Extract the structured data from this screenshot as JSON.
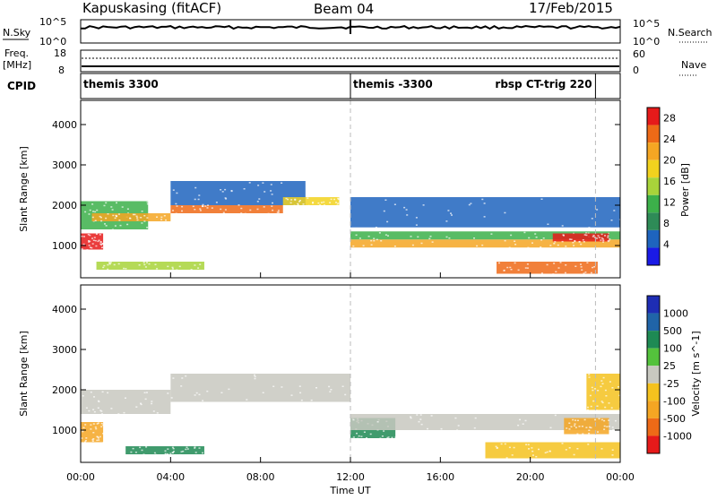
{
  "header": {
    "station": "Kapuskasing (fitACF)",
    "beam": "Beam 04",
    "date": "17/Feb/2015"
  },
  "top_panels": {
    "nsky_label": "N.Sky",
    "nsky_ticks": [
      "10^5",
      "10^0"
    ],
    "nsearch_label": "N.Search",
    "nsearch_ticks": [
      "10^5",
      "10^0"
    ],
    "freq_label_line1": "Freq.",
    "freq_label_line2": "[MHz]",
    "freq_ticks": [
      "18",
      "8"
    ],
    "nave_label": "Nave",
    "nave_ticks": [
      "60",
      "0"
    ],
    "cpid_label": "CPID",
    "cpid_segments": [
      {
        "label": "themis 3300",
        "start_hour": 0.0,
        "end_hour": 12.0
      },
      {
        "label": "themis -3300",
        "start_hour": 12.0,
        "end_hour": 22.9
      },
      {
        "label": "rbsp CT-trig 220",
        "start_hour": 22.9,
        "end_hour": 24.0
      }
    ]
  },
  "colors": {
    "power": [
      "#1a1ae6",
      "#1e64be",
      "#2e8b57",
      "#3cb04a",
      "#a8d43a",
      "#f2d21e",
      "#f5a623",
      "#ee6a17",
      "#e61a1a"
    ],
    "velocity": [
      "#1e2db4",
      "#2064a8",
      "#1e8a54",
      "#54c23c",
      "#c8c8c0",
      "#f5c21e",
      "#f5a623",
      "#ee6a17",
      "#e61a1a"
    ]
  },
  "chart_data": [
    {
      "type": "heatmap",
      "title": "",
      "xlabel": "Time UT",
      "ylabel": "Slant Range [km]",
      "xlim": [
        0,
        24
      ],
      "ylim": [
        200,
        4600
      ],
      "x_ticks": [
        "00:00",
        "04:00",
        "08:00",
        "12:00",
        "16:00",
        "20:00",
        "00:00"
      ],
      "y_ticks": [
        1000,
        2000,
        3000,
        4000
      ],
      "colorbar_label": "Power [dB]",
      "colorbar_ticks": [
        "4",
        "8",
        "12",
        "16",
        "20",
        "24",
        "28"
      ],
      "colorbar_range": [
        0,
        30
      ],
      "echo_bands": [
        {
          "start_hour": 0.0,
          "end_hour": 1.0,
          "range_low": 900,
          "range_high": 1300,
          "value": 28
        },
        {
          "start_hour": 0.0,
          "end_hour": 3.0,
          "range_low": 1400,
          "range_high": 2100,
          "value": 10
        },
        {
          "start_hour": 0.5,
          "end_hour": 4.0,
          "range_low": 1600,
          "range_high": 1800,
          "value": 22
        },
        {
          "start_hour": 4.0,
          "end_hour": 9.0,
          "range_low": 1800,
          "range_high": 2000,
          "value": 24
        },
        {
          "start_hour": 4.0,
          "end_hour": 10.0,
          "range_low": 2000,
          "range_high": 2600,
          "value": 6
        },
        {
          "start_hour": 9.0,
          "end_hour": 11.5,
          "range_low": 2000,
          "range_high": 2200,
          "value": 18
        },
        {
          "start_hour": 0.7,
          "end_hour": 5.5,
          "range_low": 400,
          "range_high": 600,
          "value": 14
        },
        {
          "start_hour": 12.0,
          "end_hour": 24.0,
          "range_low": 950,
          "range_high": 1150,
          "value": 22
        },
        {
          "start_hour": 12.0,
          "end_hour": 24.0,
          "range_low": 1150,
          "range_high": 1350,
          "value": 10
        },
        {
          "start_hour": 12.0,
          "end_hour": 24.0,
          "range_low": 1450,
          "range_high": 2200,
          "value": 6
        },
        {
          "start_hour": 18.5,
          "end_hour": 23.0,
          "range_low": 300,
          "range_high": 600,
          "value": 26
        },
        {
          "start_hour": 21.0,
          "end_hour": 23.5,
          "range_low": 1100,
          "range_high": 1300,
          "value": 28
        }
      ]
    },
    {
      "type": "heatmap",
      "title": "",
      "xlabel": "Time UT",
      "ylabel": "Slant Range [km]",
      "xlim": [
        0,
        24
      ],
      "ylim": [
        200,
        4600
      ],
      "x_ticks": [
        "00:00",
        "04:00",
        "08:00",
        "12:00",
        "16:00",
        "20:00",
        "00:00"
      ],
      "y_ticks": [
        1000,
        2000,
        3000,
        4000
      ],
      "colorbar_label": "Velocity [m s^-1]",
      "colorbar_ticks": [
        "1000",
        "500",
        "100",
        "25",
        "-25",
        "-100",
        "-500",
        "-1000"
      ],
      "echo_bands": [
        {
          "start_hour": 0.0,
          "end_hour": 1.0,
          "range_low": 700,
          "range_high": 1200,
          "value": -500
        },
        {
          "start_hour": 0.0,
          "end_hour": 4.0,
          "range_low": 1400,
          "range_high": 2000,
          "value": 0
        },
        {
          "start_hour": 4.0,
          "end_hour": 12.0,
          "range_low": 1700,
          "range_high": 2400,
          "value": 0
        },
        {
          "start_hour": 2.0,
          "end_hour": 5.5,
          "range_low": 400,
          "range_high": 600,
          "value": 150
        },
        {
          "start_hour": 12.0,
          "end_hour": 14.0,
          "range_low": 800,
          "range_high": 1300,
          "value": 150
        },
        {
          "start_hour": 12.0,
          "end_hour": 24.0,
          "range_low": 1000,
          "range_high": 1400,
          "value": 0
        },
        {
          "start_hour": 18.0,
          "end_hour": 24.0,
          "range_low": 300,
          "range_high": 700,
          "value": -100
        },
        {
          "start_hour": 21.5,
          "end_hour": 23.5,
          "range_low": 900,
          "range_high": 1300,
          "value": -500
        },
        {
          "start_hour": 22.5,
          "end_hour": 24.0,
          "range_low": 1500,
          "range_high": 2400,
          "value": -50
        }
      ]
    }
  ]
}
